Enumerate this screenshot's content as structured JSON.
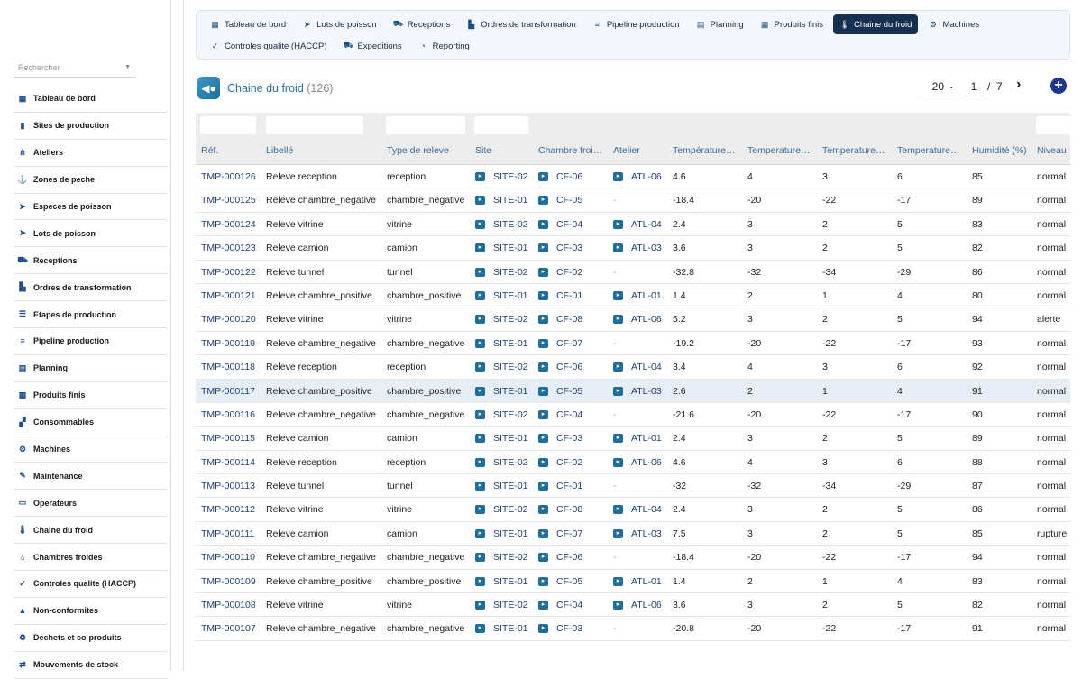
{
  "sidebar": {
    "search_placeholder": "Rechercher",
    "items": [
      {
        "label": "Tableau de bord",
        "icon": "grid-icon"
      },
      {
        "label": "Sites de production",
        "icon": "bar-chart-icon"
      },
      {
        "label": "Ateliers",
        "icon": "sitemap-icon"
      },
      {
        "label": "Zones de peche",
        "icon": "anchor-icon"
      },
      {
        "label": "Especes de poisson",
        "icon": "fish-icon"
      },
      {
        "label": "Lots de poisson",
        "icon": "fish-icon"
      },
      {
        "label": "Receptions",
        "icon": "truck-loading-icon"
      },
      {
        "label": "Ordres de transformation",
        "icon": "industry-icon"
      },
      {
        "label": "Etapes de production",
        "icon": "list-icon"
      },
      {
        "label": "Pipeline production",
        "icon": "lines-icon"
      },
      {
        "label": "Planning",
        "icon": "calendar-icon"
      },
      {
        "label": "Produits finis",
        "icon": "grid-icon"
      },
      {
        "label": "Consommables",
        "icon": "boxes-icon"
      },
      {
        "label": "Machines",
        "icon": "gears-icon"
      },
      {
        "label": "Maintenance",
        "icon": "wrench-icon"
      },
      {
        "label": "Operateurs",
        "icon": "id-card-icon"
      },
      {
        "label": "Chaine du froid",
        "icon": "thermometer-icon"
      },
      {
        "label": "Chambres froides",
        "icon": "warehouse-icon"
      },
      {
        "label": "Controles qualite (HACCP)",
        "icon": "clipboard-check-icon"
      },
      {
        "label": "Non-conformites",
        "icon": "warning-icon"
      },
      {
        "label": "Dechets et co-produits",
        "icon": "recycle-icon"
      },
      {
        "label": "Mouvements de stock",
        "icon": "exchange-icon"
      }
    ]
  },
  "menu": {
    "row1": [
      {
        "label": "Tableau de bord",
        "icon": "grid-icon"
      },
      {
        "label": "Lots de poisson",
        "icon": "fish-icon"
      },
      {
        "label": "Receptions",
        "icon": "truck-loading-icon"
      },
      {
        "label": "Ordres de transformation",
        "icon": "industry-icon"
      },
      {
        "label": "Pipeline production",
        "icon": "lines-icon"
      },
      {
        "label": "Planning",
        "icon": "calendar-icon"
      },
      {
        "label": "Produits finis",
        "icon": "grid-icon"
      },
      {
        "label": "Chaine du froid",
        "icon": "thermometer-icon",
        "active": true
      },
      {
        "label": "Machines",
        "icon": "gears-icon"
      }
    ],
    "row2": [
      {
        "label": "Controles qualite (HACCP)",
        "icon": "clipboard-check-icon"
      },
      {
        "label": "Expeditions",
        "icon": "truck-icon"
      },
      {
        "label": "Reporting",
        "icon": "pie-chart-icon"
      }
    ]
  },
  "header": {
    "title": "Chaine du froid",
    "count": "(126)",
    "page_size": "20",
    "page": "1",
    "separator": "/",
    "total_pages": "7"
  },
  "table": {
    "columns": [
      "Réf.",
      "Libellé",
      "Type de releve",
      "Site",
      "Chambre froi…",
      "Atelier",
      "Température…",
      "Temperature…",
      "Temperature…",
      "Temperature…",
      "Humidité (%)",
      "Niveau d"
    ],
    "rows": [
      [
        "TMP-000126",
        "Releve reception",
        "reception",
        "SITE-02",
        "CF-06",
        "ATL-06",
        "4.6",
        "4",
        "3",
        "6",
        "85",
        "normal"
      ],
      [
        "TMP-000125",
        "Releve chambre_negative",
        "chambre_negative",
        "SITE-01",
        "CF-05",
        "-",
        "-18.4",
        "-20",
        "-22",
        "-17",
        "89",
        "normal"
      ],
      [
        "TMP-000124",
        "Releve vitrine",
        "vitrine",
        "SITE-02",
        "CF-04",
        "ATL-04",
        "2.4",
        "3",
        "2",
        "5",
        "83",
        "normal"
      ],
      [
        "TMP-000123",
        "Releve camion",
        "camion",
        "SITE-01",
        "CF-03",
        "ATL-03",
        "3.6",
        "3",
        "2",
        "5",
        "82",
        "normal"
      ],
      [
        "TMP-000122",
        "Releve tunnel",
        "tunnel",
        "SITE-02",
        "CF-02",
        "-",
        "-32.8",
        "-32",
        "-34",
        "-29",
        "86",
        "normal"
      ],
      [
        "TMP-000121",
        "Releve chambre_positive",
        "chambre_positive",
        "SITE-01",
        "CF-01",
        "ATL-01",
        "1.4",
        "2",
        "1",
        "4",
        "80",
        "normal"
      ],
      [
        "TMP-000120",
        "Releve vitrine",
        "vitrine",
        "SITE-02",
        "CF-08",
        "ATL-06",
        "5.2",
        "3",
        "2",
        "5",
        "94",
        "alerte"
      ],
      [
        "TMP-000119",
        "Releve chambre_negative",
        "chambre_negative",
        "SITE-01",
        "CF-07",
        "-",
        "-19.2",
        "-20",
        "-22",
        "-17",
        "93",
        "normal"
      ],
      [
        "TMP-000118",
        "Releve reception",
        "reception",
        "SITE-02",
        "CF-06",
        "ATL-04",
        "3.4",
        "4",
        "3",
        "6",
        "92",
        "normal"
      ],
      [
        "TMP-000117",
        "Releve chambre_positive",
        "chambre_positive",
        "SITE-01",
        "CF-05",
        "ATL-03",
        "2.6",
        "2",
        "1",
        "4",
        "91",
        "normal"
      ],
      [
        "TMP-000116",
        "Releve chambre_negative",
        "chambre_negative",
        "SITE-02",
        "CF-04",
        "-",
        "-21.6",
        "-20",
        "-22",
        "-17",
        "90",
        "normal"
      ],
      [
        "TMP-000115",
        "Releve camion",
        "camion",
        "SITE-01",
        "CF-03",
        "ATL-01",
        "2.4",
        "3",
        "2",
        "5",
        "89",
        "normal"
      ],
      [
        "TMP-000114",
        "Releve reception",
        "reception",
        "SITE-02",
        "CF-02",
        "ATL-06",
        "4.6",
        "4",
        "3",
        "6",
        "88",
        "normal"
      ],
      [
        "TMP-000113",
        "Releve tunnel",
        "tunnel",
        "SITE-01",
        "CF-01",
        "-",
        "-32",
        "-32",
        "-34",
        "-29",
        "87",
        "normal"
      ],
      [
        "TMP-000112",
        "Releve vitrine",
        "vitrine",
        "SITE-02",
        "CF-08",
        "ATL-04",
        "2.4",
        "3",
        "2",
        "5",
        "86",
        "normal"
      ],
      [
        "TMP-000111",
        "Releve camion",
        "camion",
        "SITE-01",
        "CF-07",
        "ATL-03",
        "7.5",
        "3",
        "2",
        "5",
        "85",
        "rupture"
      ],
      [
        "TMP-000110",
        "Releve chambre_negative",
        "chambre_negative",
        "SITE-02",
        "CF-06",
        "-",
        "-18.4",
        "-20",
        "-22",
        "-17",
        "94",
        "normal"
      ],
      [
        "TMP-000109",
        "Releve chambre_positive",
        "chambre_positive",
        "SITE-01",
        "CF-05",
        "ATL-01",
        "1.4",
        "2",
        "1",
        "4",
        "83",
        "normal"
      ],
      [
        "TMP-000108",
        "Releve vitrine",
        "vitrine",
        "SITE-02",
        "CF-04",
        "ATL-06",
        "3.6",
        "3",
        "2",
        "5",
        "82",
        "normal"
      ],
      [
        "TMP-000107",
        "Releve chambre_negative",
        "chambre_negative",
        "SITE-01",
        "CF-03",
        "-",
        "-20.8",
        "-20",
        "-22",
        "-17",
        "91",
        "normal"
      ]
    ],
    "highlighted_row": 9
  },
  "colors": {
    "accent": "#15314f",
    "link": "#1d3f7a",
    "header_text": "#3a6b9a",
    "add_button": "#1b3590"
  }
}
